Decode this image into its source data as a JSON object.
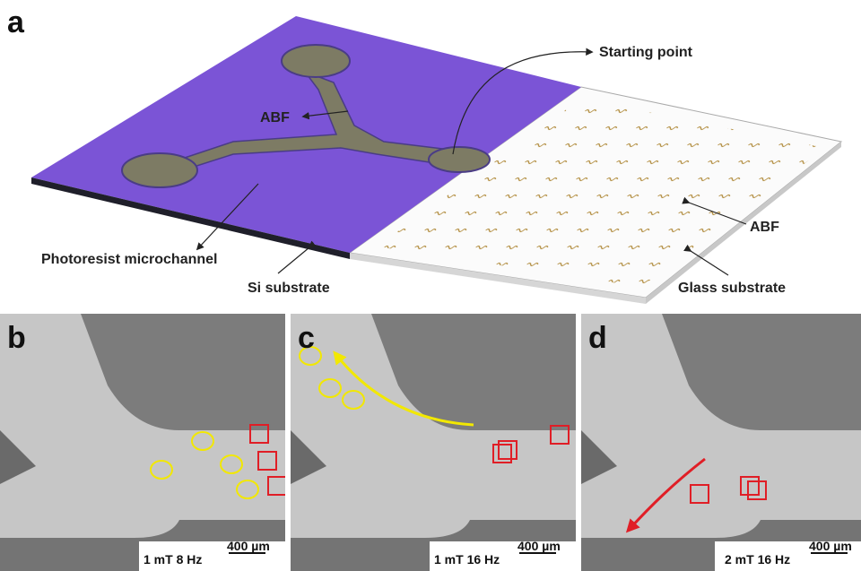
{
  "panel_a": {
    "label": "a",
    "starting_point": "Starting point",
    "abf_left": "ABF",
    "abf_right": "ABF",
    "photoresist": "Photoresist microchannel",
    "si_substrate": "Si substrate",
    "glass_substrate": "Glass substrate"
  },
  "panel_b": {
    "label": "b",
    "condition": "1 mT 8 Hz",
    "scale": "400 µm"
  },
  "panel_c": {
    "label": "c",
    "condition": "1 mT 16 Hz",
    "scale": "400 µm"
  },
  "panel_d": {
    "label": "d",
    "condition": "2 mT 16 Hz",
    "scale": "400 µm"
  }
}
